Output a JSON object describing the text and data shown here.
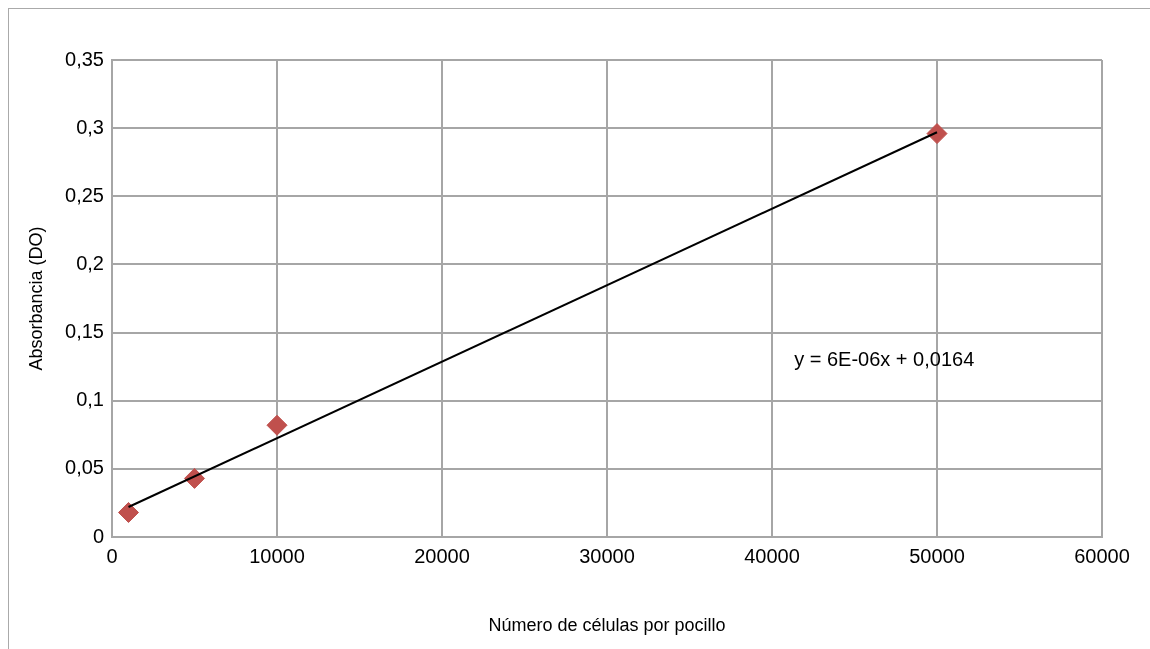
{
  "chart_data": {
    "type": "scatter",
    "xlabel": "Número de células por pocillo",
    "ylabel": "Absorbancia (DO)",
    "series": [
      {
        "color": "#c0504d",
        "x": [
          1000,
          5000,
          10000,
          50000
        ],
        "values": [
          0.018,
          0.043,
          0.082,
          0.296
        ],
        "marker": "diamond"
      },
      {
        "type": "line",
        "color": "#000000",
        "x": [
          1000,
          50000
        ],
        "values": [
          0.022,
          0.297
        ],
        "marker": "none"
      }
    ],
    "annotations": [
      "y = 6E-06x + 0,0164"
    ],
    "xlim": [
      0,
      60000
    ],
    "xticks": [
      0,
      10000,
      20000,
      30000,
      40000,
      50000,
      60000
    ],
    "ylim": [
      0,
      0.35
    ],
    "yticks": [
      0,
      {
        "value": 0.05,
        "label": "0,05"
      },
      {
        "value": 0.1,
        "label": "0,1"
      },
      {
        "value": 0.15,
        "label": "0,15"
      },
      {
        "value": 0.2,
        "label": "0,2"
      },
      {
        "value": 0.25,
        "label": "0,25"
      },
      {
        "value": 0.3,
        "label": "0,3"
      },
      {
        "value": 0.35,
        "label": "0,35"
      }
    ],
    "grid": true,
    "legend": false
  }
}
